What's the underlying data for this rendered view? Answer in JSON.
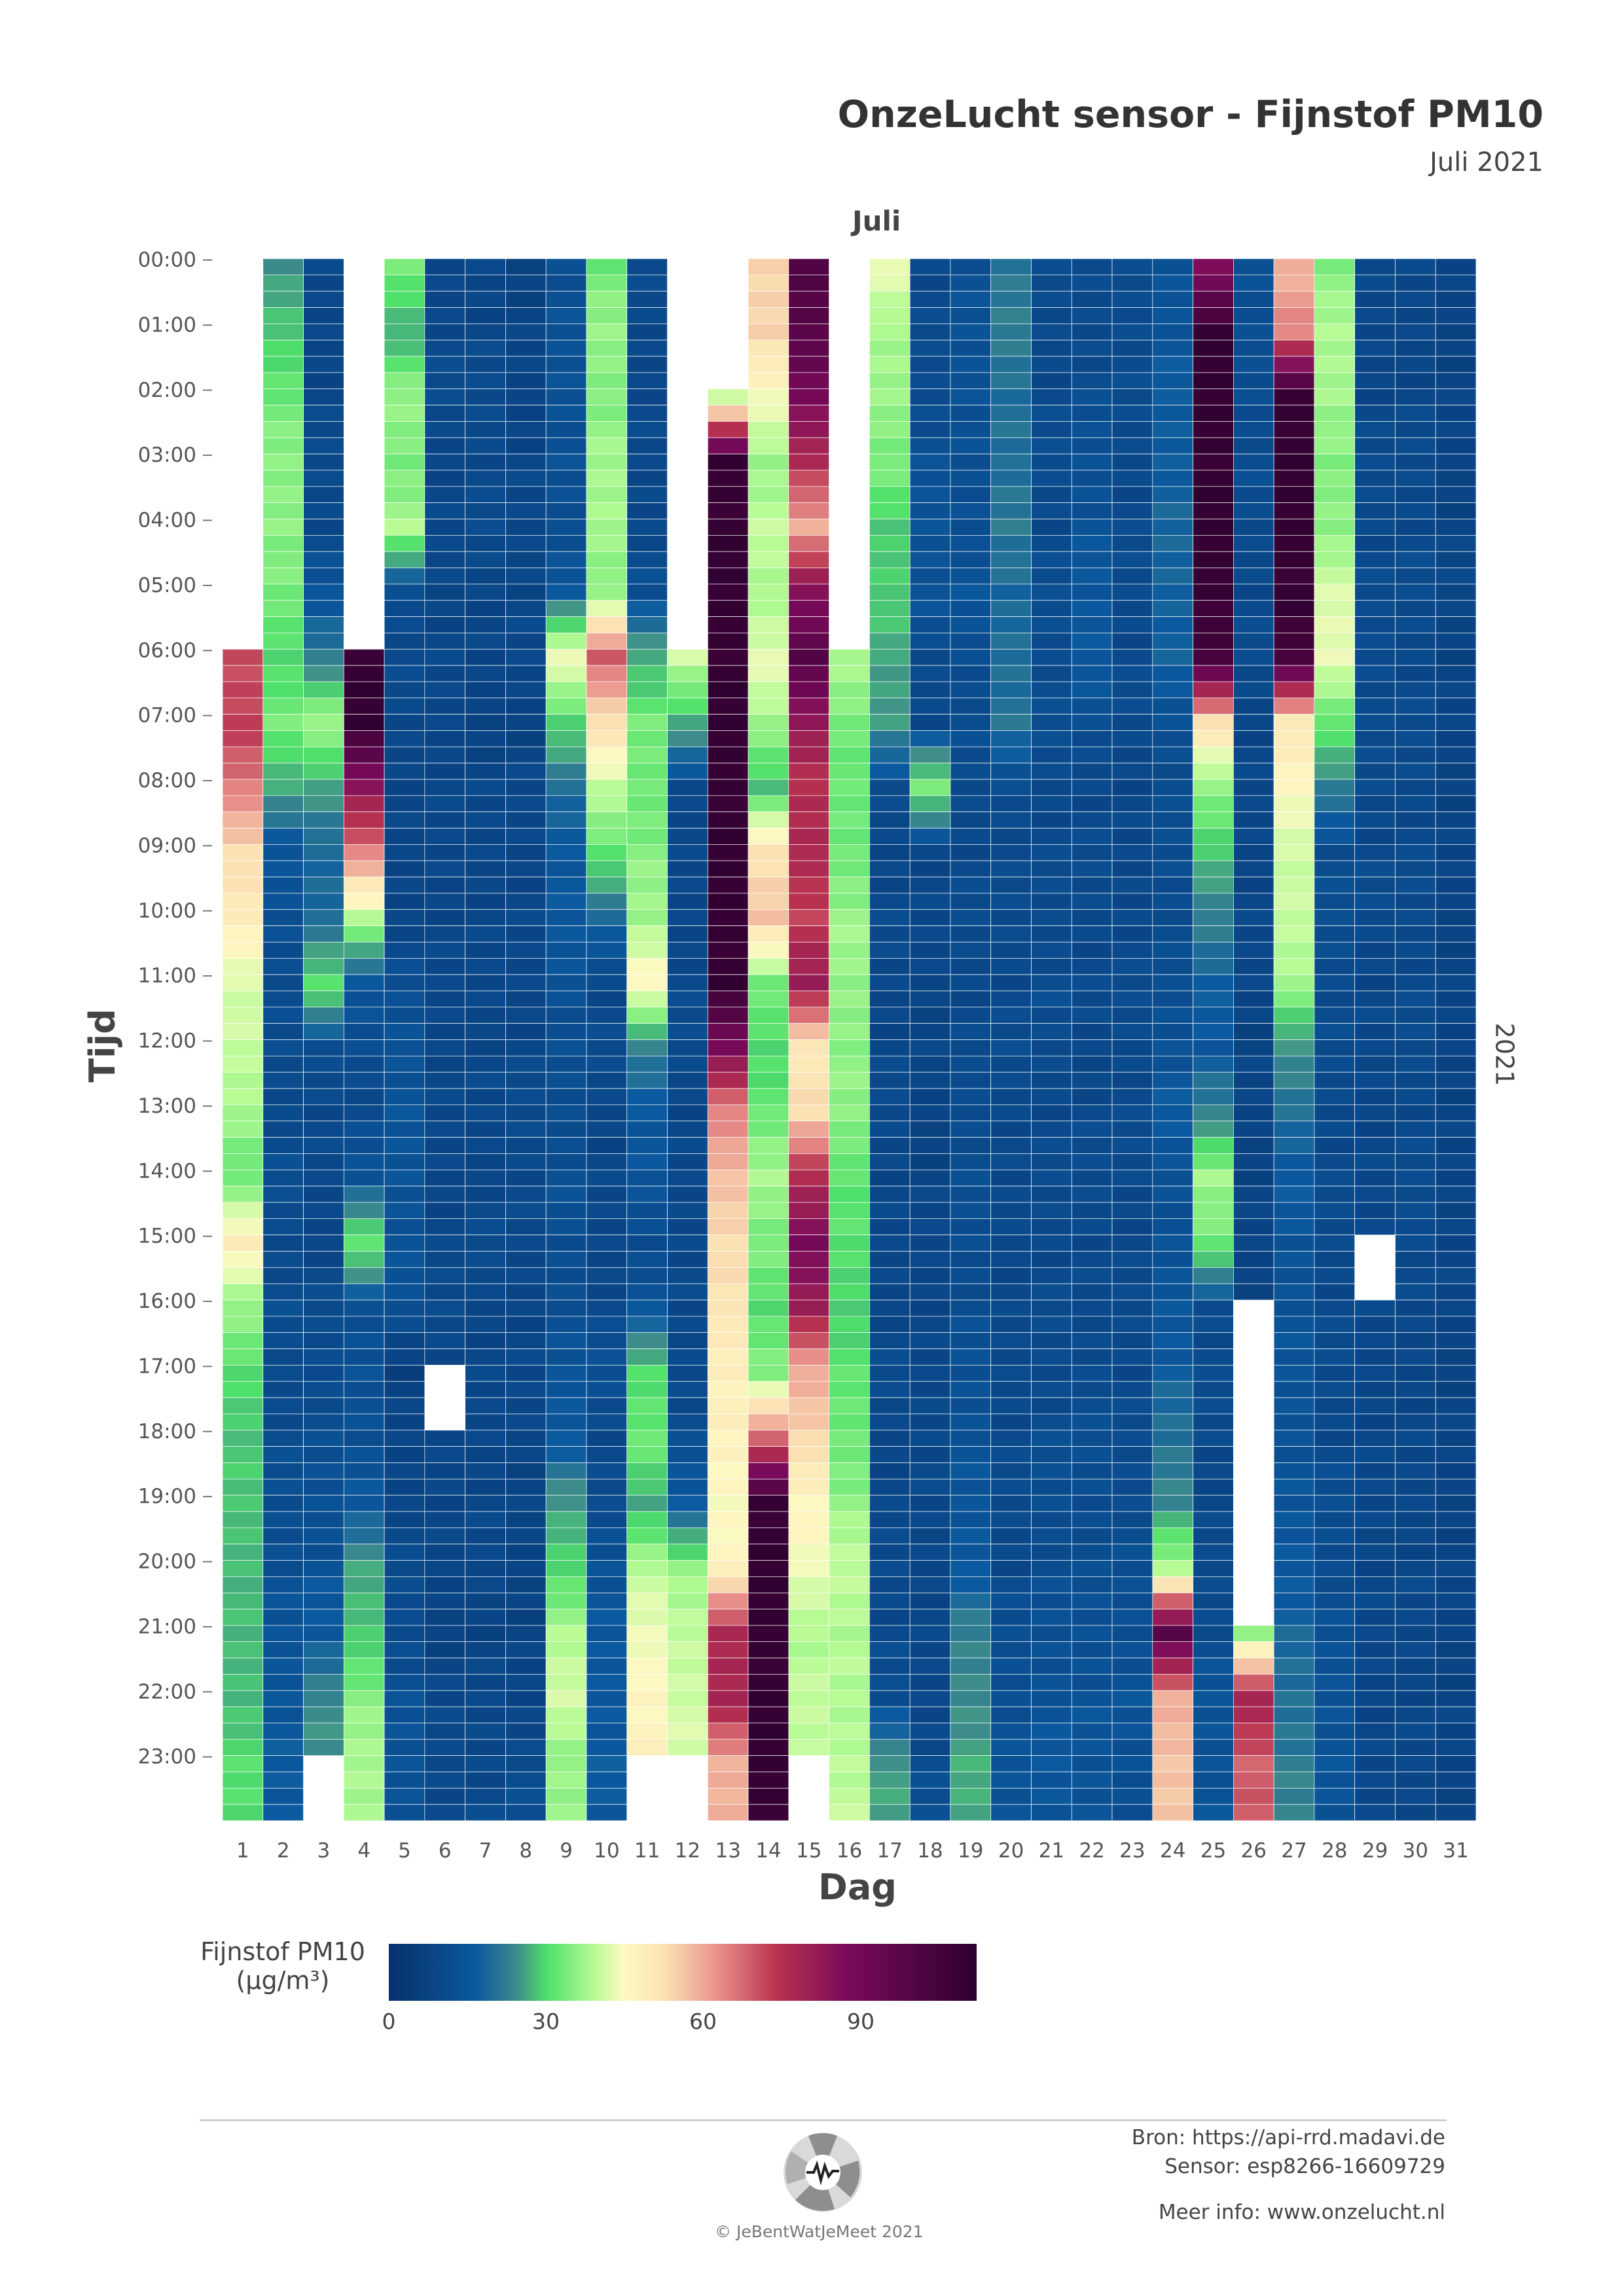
{
  "title": "OnzeLucht sensor - Fijnstof PM10",
  "subtitle": "Juli 2021",
  "month_label": "Juli",
  "year_label": "2021",
  "colorbar": {
    "title_line1": "Fijnstof PM10",
    "title_line2": "(µg/m³)",
    "ticks": [
      "0",
      "30",
      "60",
      "90"
    ],
    "range": [
      0,
      112
    ]
  },
  "colors": {
    "low": "#08306b",
    "mid_low": "#4fe06a",
    "mid": "#fdf9c2",
    "high": "#b8324f",
    "max": "#2e0030"
  },
  "footer": {
    "source": "Bron: https://api-rrd.madavi.de",
    "sensor": "Sensor: esp8266-16609729",
    "more": "Meer info: www.onzelucht.nl",
    "copyright": "© JeBentWatJeMeet 2021"
  },
  "chart_data": {
    "type": "heatmap",
    "title": "OnzeLucht sensor - Fijnstof PM10",
    "xlabel": "Dag",
    "ylabel": "Tijd",
    "x_categories": [
      "1",
      "2",
      "3",
      "4",
      "5",
      "6",
      "7",
      "8",
      "9",
      "10",
      "11",
      "12",
      "13",
      "14",
      "15",
      "16",
      "17",
      "18",
      "19",
      "20",
      "21",
      "22",
      "23",
      "24",
      "25",
      "26",
      "27",
      "28",
      "29",
      "30",
      "31"
    ],
    "y_ticks": [
      "00:00",
      "01:00",
      "02:00",
      "03:00",
      "04:00",
      "05:00",
      "06:00",
      "07:00",
      "08:00",
      "09:00",
      "10:00",
      "11:00",
      "12:00",
      "13:00",
      "14:00",
      "15:00",
      "16:00",
      "17:00",
      "18:00",
      "19:00",
      "20:00",
      "21:00",
      "22:00",
      "23:00"
    ],
    "slots_per_hour": 4,
    "unit": "µg/m³",
    "daily_hourly_profile": [
      [
        null,
        null,
        null,
        null,
        null,
        null,
        72,
        74,
        66,
        55,
        50,
        43,
        40,
        38,
        32,
        50,
        36,
        30,
        28,
        27,
        27,
        26,
        27,
        30
      ],
      [
        22,
        28,
        33,
        35,
        36,
        33,
        30,
        33,
        25,
        12,
        11,
        10,
        9,
        9,
        10,
        9,
        10,
        9,
        10,
        10,
        11,
        12,
        13,
        14
      ],
      [
        8,
        8,
        8,
        9,
        9,
        12,
        20,
        37,
        25,
        16,
        17,
        31,
        10,
        9,
        8,
        8,
        9,
        10,
        10,
        11,
        12,
        14,
        22,
        null
      ],
      [
        null,
        null,
        null,
        null,
        null,
        null,
        110,
        110,
        86,
        65,
        40,
        12,
        10,
        9,
        12,
        33,
        10,
        12,
        10,
        14,
        24,
        28,
        35,
        38
      ],
      [
        33,
        26,
        36,
        34,
        38,
        10,
        9,
        8,
        8,
        7,
        8,
        10,
        12,
        12,
        12,
        12,
        11,
        6,
        7,
        8,
        9,
        10,
        11,
        12
      ],
      [
        8,
        9,
        9,
        8,
        8,
        8,
        8,
        8,
        8,
        8,
        8,
        8,
        8,
        8,
        8,
        8,
        9,
        null,
        8,
        8,
        7,
        7,
        8,
        9
      ],
      [
        8,
        8,
        9,
        9,
        9,
        8,
        7,
        7,
        8,
        8,
        8,
        8,
        8,
        8,
        8,
        9,
        8,
        8,
        8,
        8,
        8,
        7,
        8,
        9
      ],
      [
        7,
        7,
        7,
        8,
        8,
        8,
        8,
        7,
        8,
        8,
        8,
        8,
        8,
        9,
        9,
        8,
        8,
        8,
        8,
        7,
        7,
        7,
        7,
        10
      ],
      [
        11,
        11,
        12,
        11,
        10,
        14,
        45,
        30,
        17,
        14,
        13,
        12,
        10,
        10,
        11,
        10,
        11,
        12,
        14,
        23,
        30,
        38,
        42,
        36
      ],
      [
        33,
        36,
        35,
        37,
        38,
        35,
        70,
        54,
        40,
        32,
        16,
        9,
        9,
        8,
        8,
        8,
        9,
        11,
        9,
        9,
        12,
        13,
        14,
        14
      ],
      [
        9,
        8,
        9,
        8,
        9,
        10,
        26,
        33,
        33,
        35,
        37,
        48,
        20,
        14,
        12,
        10,
        12,
        30,
        33,
        25,
        40,
        44,
        48,
        null
      ],
      [
        null,
        null,
        null,
        null,
        null,
        null,
        42,
        25,
        9,
        8,
        8,
        9,
        9,
        8,
        8,
        9,
        8,
        9,
        10,
        14,
        36,
        40,
        42,
        null
      ],
      [
        null,
        null,
        40,
        110,
        110,
        110,
        110,
        110,
        110,
        110,
        110,
        110,
        90,
        65,
        58,
        55,
        52,
        50,
        48,
        46,
        48,
        78,
        80,
        60
      ],
      [
        55,
        56,
        45,
        37,
        40,
        38,
        44,
        37,
        28,
        53,
        58,
        33,
        30,
        32,
        38,
        34,
        30,
        36,
        68,
        110,
        110,
        110,
        110,
        110
      ],
      [
        102,
        100,
        90,
        78,
        60,
        88,
        100,
        84,
        76,
        78,
        74,
        82,
        52,
        54,
        78,
        90,
        82,
        60,
        55,
        48,
        44,
        39,
        40,
        null
      ],
      [
        null,
        null,
        null,
        null,
        null,
        null,
        38,
        34,
        32,
        33,
        37,
        36,
        36,
        35,
        32,
        30,
        29,
        31,
        33,
        36,
        40,
        39,
        38,
        40
      ],
      [
        45,
        37,
        37,
        34,
        28,
        29,
        24,
        24,
        9,
        8,
        9,
        8,
        8,
        9,
        8,
        8,
        8,
        9,
        8,
        8,
        9,
        9,
        10,
        24
      ],
      [
        9,
        9,
        10,
        11,
        12,
        12,
        9,
        9,
        33,
        8,
        8,
        8,
        7,
        7,
        7,
        8,
        8,
        8,
        9,
        8,
        8,
        8,
        8,
        10
      ],
      [
        11,
        11,
        12,
        10,
        11,
        12,
        10,
        10,
        9,
        9,
        9,
        9,
        9,
        10,
        10,
        10,
        10,
        11,
        12,
        12,
        14,
        20,
        22,
        25
      ],
      [
        18,
        20,
        18,
        17,
        20,
        16,
        18,
        18,
        10,
        9,
        9,
        9,
        9,
        9,
        8,
        9,
        8,
        9,
        9,
        9,
        9,
        10,
        11,
        12
      ],
      [
        9,
        9,
        9,
        10,
        9,
        10,
        10,
        10,
        9,
        9,
        9,
        10,
        9,
        9,
        9,
        9,
        9,
        9,
        10,
        10,
        10,
        11,
        12,
        13
      ],
      [
        9,
        9,
        10,
        11,
        12,
        13,
        14,
        10,
        9,
        9,
        9,
        9,
        8,
        9,
        9,
        9,
        8,
        10,
        10,
        10,
        10,
        11,
        12,
        12
      ],
      [
        9,
        10,
        9,
        9,
        9,
        9,
        9,
        9,
        8,
        8,
        9,
        9,
        9,
        9,
        9,
        8,
        9,
        9,
        9,
        10,
        10,
        11,
        12,
        11
      ],
      [
        12,
        13,
        14,
        15,
        16,
        16,
        15,
        11,
        10,
        10,
        10,
        10,
        12,
        14,
        12,
        11,
        13,
        15,
        18,
        22,
        38,
        100,
        60,
        58
      ],
      [
        88,
        110,
        110,
        110,
        110,
        110,
        105,
        55,
        35,
        28,
        20,
        15,
        14,
        20,
        38,
        32,
        10,
        9,
        9,
        8,
        9,
        10,
        12,
        12
      ],
      [
        12,
        10,
        10,
        10,
        9,
        9,
        9,
        8,
        8,
        8,
        8,
        8,
        7,
        7,
        7,
        7,
        null,
        null,
        null,
        null,
        null,
        36,
        80,
        70
      ],
      [
        60,
        65,
        110,
        110,
        110,
        110,
        105,
        52,
        46,
        42,
        40,
        38,
        22,
        18,
        14,
        12,
        12,
        12,
        12,
        12,
        14,
        16,
        18,
        20
      ],
      [
        35,
        38,
        38,
        34,
        36,
        42,
        44,
        32,
        20,
        10,
        10,
        10,
        9,
        9,
        9,
        9,
        9,
        9,
        9,
        10,
        10,
        11,
        12,
        12
      ],
      [
        8,
        8,
        8,
        9,
        9,
        9,
        10,
        9,
        9,
        9,
        9,
        8,
        8,
        8,
        8,
        null,
        8,
        8,
        8,
        8,
        8,
        8,
        8,
        8
      ],
      [
        8,
        8,
        8,
        9,
        9,
        9,
        9,
        9,
        9,
        9,
        9,
        9,
        9,
        9,
        9,
        10,
        8,
        8,
        8,
        8,
        8,
        8,
        8,
        8
      ],
      [
        7,
        7,
        7,
        7,
        7,
        8,
        7,
        7,
        7,
        7,
        7,
        7,
        7,
        7,
        7,
        8,
        7,
        7,
        7,
        7,
        7,
        7,
        7,
        7
      ]
    ]
  }
}
